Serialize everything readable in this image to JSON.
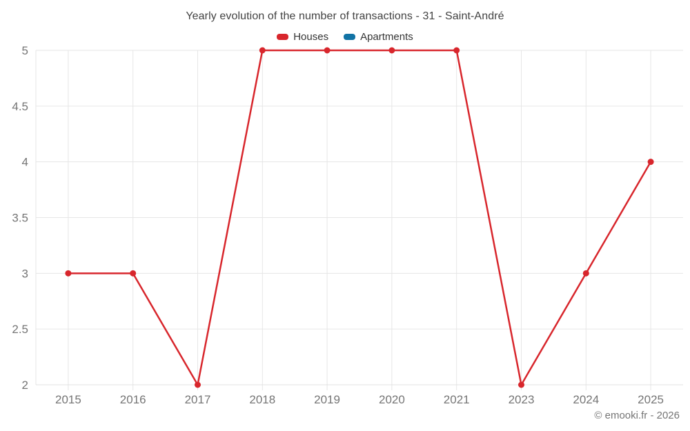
{
  "chart": {
    "title": "Yearly evolution of the number of transactions - 31 - Saint-André",
    "legend": [
      {
        "label": "Houses",
        "color": "#d8262c"
      },
      {
        "label": "Apartments",
        "color": "#1173a5"
      }
    ]
  },
  "chart_data": {
    "type": "line",
    "title": "Yearly evolution of the number of transactions - 31 - Saint-André",
    "categories": [
      "2015",
      "2016",
      "2017",
      "2018",
      "2019",
      "2020",
      "2021",
      "2023",
      "2024",
      "2025"
    ],
    "series": [
      {
        "name": "Houses",
        "color": "#d8262c",
        "values": [
          3,
          3,
          2,
          5,
          5,
          5,
          5,
          2,
          3,
          4
        ]
      },
      {
        "name": "Apartments",
        "color": "#1173a5",
        "values": []
      }
    ],
    "xlabel": "",
    "ylabel": "",
    "ylim": [
      2,
      5
    ],
    "yticks": [
      2,
      2.5,
      3,
      3.5,
      4,
      4.5,
      5
    ],
    "grid": "both",
    "legend_position": "top"
  },
  "style": {
    "grid_color": "#e6e6e6",
    "axis_line_color": "#e0e0e0",
    "axis_label_color": "#757575",
    "title_color": "#424242",
    "marker_radius": 4.5,
    "line_width": 2.5
  },
  "footer": {
    "text": "© emooki.fr - 2026"
  }
}
